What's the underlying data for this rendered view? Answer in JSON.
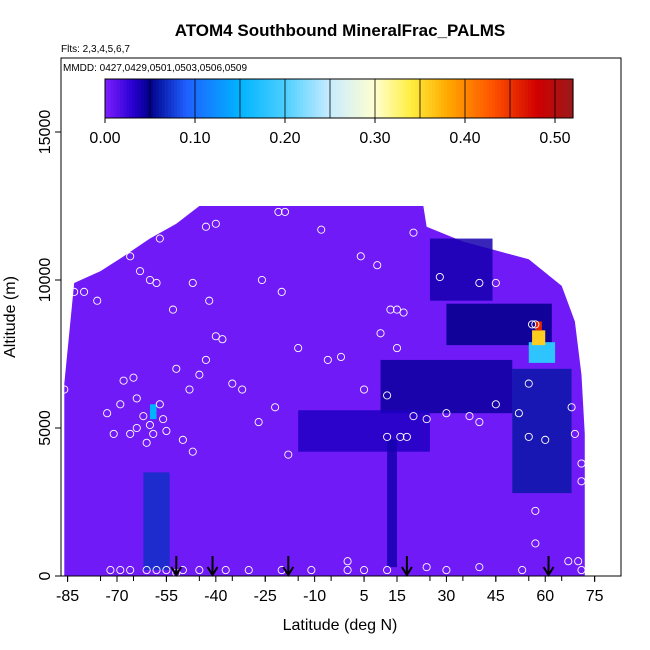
{
  "chart_data": {
    "type": "heatmap",
    "title": "ATOM4 Southbound MineralFrac_PALMS",
    "flights_label": "Flts: 2,3,4,5,6,7",
    "dates_label": "MMDD: 0427,0429,0501,0503,0506,0509",
    "xlabel": "Latitude (deg N)",
    "ylabel": "Altitude (m)",
    "xlim": [
      -87,
      83
    ],
    "ylim": [
      0,
      17500
    ],
    "x_ticks": [
      -85,
      -70,
      -55,
      -40,
      -25,
      -10,
      5,
      15,
      30,
      45,
      60,
      75
    ],
    "y_ticks": [
      0,
      5000,
      10000,
      15000
    ],
    "colorbar": {
      "range": [
        0,
        0.52
      ],
      "tick_values": [
        0.0,
        0.1,
        0.2,
        0.3,
        0.4,
        0.5
      ],
      "tick_labels": [
        "0.00",
        "0.10",
        "0.20",
        "0.30",
        "0.40",
        "0.50"
      ],
      "stops": [
        {
          "v": 0.0,
          "color": "#7f1fff"
        },
        {
          "v": 0.03,
          "color": "#2a00d4"
        },
        {
          "v": 0.05,
          "color": "#00008a"
        },
        {
          "v": 0.09,
          "color": "#1f5fff"
        },
        {
          "v": 0.15,
          "color": "#00b4ff"
        },
        {
          "v": 0.2,
          "color": "#4ccfff"
        },
        {
          "v": 0.25,
          "color": "#c8ecff"
        },
        {
          "v": 0.3,
          "color": "#ffffd0"
        },
        {
          "v": 0.34,
          "color": "#ffee40"
        },
        {
          "v": 0.38,
          "color": "#ffaa00"
        },
        {
          "v": 0.43,
          "color": "#ff5500"
        },
        {
          "v": 0.48,
          "color": "#d00000"
        },
        {
          "v": 0.52,
          "color": "#9a1a1a"
        }
      ]
    },
    "arrow_latitudes": [
      -52,
      -41,
      -18,
      18,
      61
    ],
    "field_envelope": [
      {
        "x": -86,
        "ymin": 0,
        "ymax": 6500
      },
      {
        "x": -83,
        "ymin": 0,
        "ymax": 9900
      },
      {
        "x": -75,
        "ymin": 0,
        "ymax": 10300
      },
      {
        "x": -68,
        "ymin": 0,
        "ymax": 10800
      },
      {
        "x": -60,
        "ymin": 0,
        "ymax": 11400
      },
      {
        "x": -52,
        "ymin": 0,
        "ymax": 11900
      },
      {
        "x": -45,
        "ymin": 0,
        "ymax": 12500
      },
      {
        "x": -30,
        "ymin": 0,
        "ymax": 12500
      },
      {
        "x": -10,
        "ymin": 0,
        "ymax": 12500
      },
      {
        "x": 10,
        "ymin": 0,
        "ymax": 12500
      },
      {
        "x": 23,
        "ymin": 0,
        "ymax": 12500
      },
      {
        "x": 24,
        "ymin": 0,
        "ymax": 11800
      },
      {
        "x": 35,
        "ymin": 0,
        "ymax": 11300
      },
      {
        "x": 45,
        "ymin": 0,
        "ymax": 11000
      },
      {
        "x": 55,
        "ymin": 0,
        "ymax": 10700
      },
      {
        "x": 65,
        "ymin": 0,
        "ymax": 9800
      },
      {
        "x": 69,
        "ymin": 0,
        "ymax": 8600
      },
      {
        "x": 71,
        "ymin": 0,
        "ymax": 6800
      },
      {
        "x": 72,
        "ymin": 0,
        "ymax": 4800
      }
    ],
    "background_value": 0.005,
    "features": [
      {
        "lat": [
          25,
          44
        ],
        "alt": [
          9300,
          11400
        ],
        "value": 0.04
      },
      {
        "lat": [
          30,
          62
        ],
        "alt": [
          7800,
          9200
        ],
        "value": 0.05
      },
      {
        "lat": [
          10,
          50
        ],
        "alt": [
          5500,
          7300
        ],
        "value": 0.045
      },
      {
        "lat": [
          50,
          68
        ],
        "alt": [
          2800,
          7000
        ],
        "value": 0.06
      },
      {
        "lat": [
          -15,
          25
        ],
        "alt": [
          4200,
          5600
        ],
        "value": 0.035
      },
      {
        "lat": [
          12,
          15
        ],
        "alt": [
          300,
          4600
        ],
        "value": 0.04
      },
      {
        "lat": [
          -62,
          -54
        ],
        "alt": [
          200,
          3500
        ],
        "value": 0.07
      },
      {
        "lat": [
          55,
          63
        ],
        "alt": [
          7200,
          7900
        ],
        "value": 0.18
      },
      {
        "lat": [
          56,
          60
        ],
        "alt": [
          7800,
          8300
        ],
        "value": 0.36
      },
      {
        "lat": [
          57,
          59
        ],
        "alt": [
          8300,
          8600
        ],
        "value": 0.46
      },
      {
        "lat": [
          -60,
          -58
        ],
        "alt": [
          5300,
          5800
        ],
        "value": 0.15
      }
    ],
    "obs_points": [
      [
        -86,
        6300
      ],
      [
        -83,
        9600
      ],
      [
        -80,
        9600
      ],
      [
        -76,
        9300
      ],
      [
        -73,
        5500
      ],
      [
        -71,
        4800
      ],
      [
        -68,
        6600
      ],
      [
        -65,
        6700
      ],
      [
        -64,
        6000
      ],
      [
        -62,
        5400
      ],
      [
        -60,
        5100
      ],
      [
        -57,
        5800
      ],
      [
        -61,
        4500
      ],
      [
        -55,
        4900
      ],
      [
        -50,
        4600
      ],
      [
        -47,
        4200
      ],
      [
        -45,
        6800
      ],
      [
        -48,
        6300
      ],
      [
        -52,
        7000
      ],
      [
        -43,
        7300
      ],
      [
        -35,
        6500
      ],
      [
        -32,
        6300
      ],
      [
        -27,
        5200
      ],
      [
        -22,
        5700
      ],
      [
        -18,
        4100
      ],
      [
        -58,
        9900
      ],
      [
        -60,
        10000
      ],
      [
        -63,
        10300
      ],
      [
        -53,
        9000
      ],
      [
        -47,
        9900
      ],
      [
        -42,
        9300
      ],
      [
        -40,
        8100
      ],
      [
        -38,
        8000
      ],
      [
        -26,
        10000
      ],
      [
        -20,
        9600
      ],
      [
        -15,
        7700
      ],
      [
        -6,
        7300
      ],
      [
        -2,
        7400
      ],
      [
        10,
        8200
      ],
      [
        5,
        6300
      ],
      [
        12,
        6100
      ],
      [
        15,
        7700
      ],
      [
        17,
        8900
      ],
      [
        15,
        9000
      ],
      [
        13,
        9000
      ],
      [
        9,
        10500
      ],
      [
        4,
        10800
      ],
      [
        -8,
        11700
      ],
      [
        -21,
        12300
      ],
      [
        -19,
        12300
      ],
      [
        -40,
        11900
      ],
      [
        -43,
        11800
      ],
      [
        -57,
        11400
      ],
      [
        -66,
        10800
      ],
      [
        20,
        11600
      ],
      [
        28,
        10100
      ],
      [
        40,
        9900
      ],
      [
        45,
        9900
      ],
      [
        53,
        11600
      ],
      [
        56,
        8500
      ],
      [
        57,
        8500
      ],
      [
        55,
        6500
      ],
      [
        45,
        5800
      ],
      [
        40,
        5200
      ],
      [
        30,
        5500
      ],
      [
        24,
        5300
      ],
      [
        20,
        5400
      ],
      [
        12,
        4700
      ],
      [
        18,
        4700
      ],
      [
        16,
        4700
      ],
      [
        37,
        5400
      ],
      [
        52,
        5500
      ],
      [
        55,
        4700
      ],
      [
        60,
        4600
      ],
      [
        68,
        5700
      ],
      [
        69,
        4800
      ],
      [
        71,
        3800
      ],
      [
        71,
        3200
      ],
      [
        57,
        2200
      ],
      [
        57,
        1100
      ],
      [
        67,
        500
      ],
      [
        70,
        500
      ],
      [
        71,
        200
      ],
      [
        53,
        200
      ],
      [
        40,
        300
      ],
      [
        30,
        200
      ],
      [
        24,
        300
      ],
      [
        12,
        200
      ],
      [
        5,
        200
      ],
      [
        0,
        500
      ],
      [
        0,
        200
      ],
      [
        -11,
        200
      ],
      [
        -20,
        200
      ],
      [
        -30,
        200
      ],
      [
        -37,
        200
      ],
      [
        -45,
        200
      ],
      [
        -50,
        200
      ],
      [
        -52,
        100
      ],
      [
        -55,
        200
      ],
      [
        -58,
        200
      ],
      [
        -61,
        200
      ],
      [
        -66,
        200
      ],
      [
        -69,
        200
      ],
      [
        -72,
        200
      ],
      [
        -64,
        5000
      ],
      [
        -66,
        4800
      ],
      [
        -56,
        5300
      ],
      [
        -69,
        5800
      ],
      [
        -59,
        4800
      ]
    ]
  }
}
